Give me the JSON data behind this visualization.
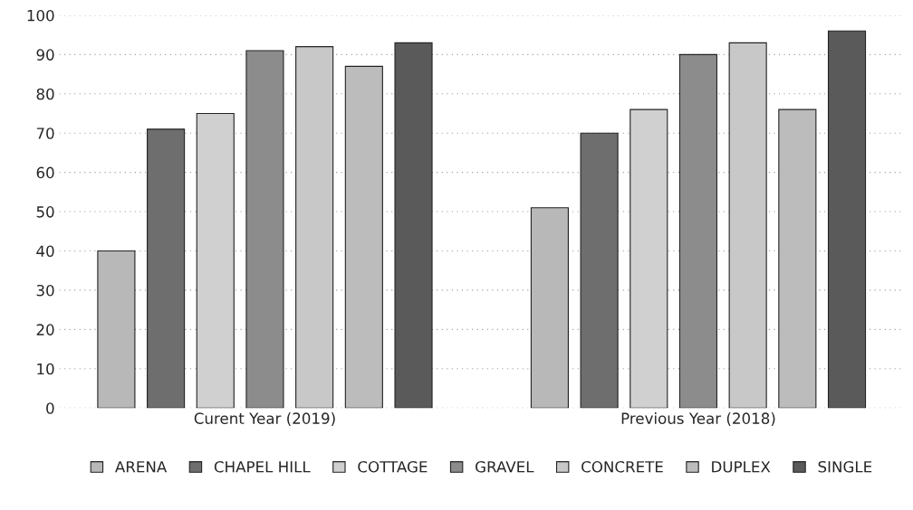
{
  "chart_data": {
    "type": "bar",
    "categories": [
      "Curent Year (2019)",
      "Previous Year (2018)"
    ],
    "series": [
      {
        "name": "ARENA",
        "color": "#b8b8b8",
        "values": [
          40,
          51
        ]
      },
      {
        "name": "CHAPEL HILL",
        "color": "#6e6e6e",
        "values": [
          71,
          70
        ]
      },
      {
        "name": "COTTAGE",
        "color": "#d0d0d0",
        "values": [
          75,
          76
        ]
      },
      {
        "name": "GRAVEL",
        "color": "#8c8c8c",
        "values": [
          91,
          90
        ]
      },
      {
        "name": "CONCRETE",
        "color": "#c8c8c8",
        "values": [
          92,
          93
        ]
      },
      {
        "name": "DUPLEX",
        "color": "#bcbcbc",
        "values": [
          87,
          76
        ]
      },
      {
        "name": "SINGLE",
        "color": "#5a5a5a",
        "values": [
          93,
          96
        ]
      }
    ],
    "ylim": [
      0,
      100
    ],
    "yticks": [
      0,
      10,
      20,
      30,
      40,
      50,
      60,
      70,
      80,
      90,
      100
    ],
    "grid": "y",
    "legend": "bottom"
  }
}
